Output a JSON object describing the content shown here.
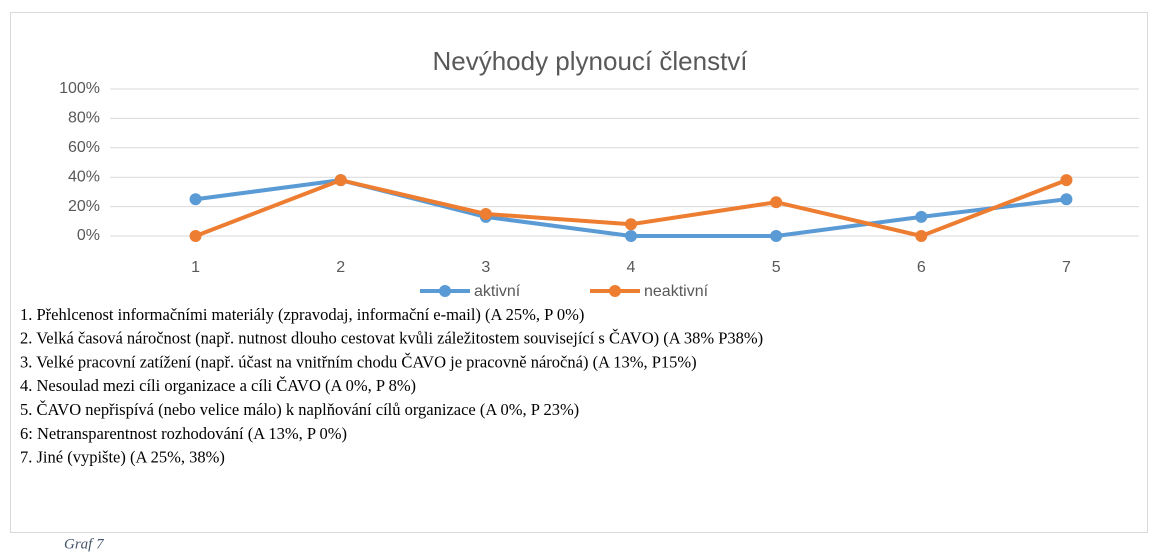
{
  "chart_data": {
    "type": "line",
    "title": "Nevýhody plynoucí členství",
    "categories": [
      "1",
      "2",
      "3",
      "4",
      "5",
      "6",
      "7"
    ],
    "series": [
      {
        "name": "aktivní",
        "color": "#5b9bd5",
        "values": [
          25,
          38,
          13,
          0,
          0,
          13,
          25
        ]
      },
      {
        "name": "neaktivní",
        "color": "#ed7d31",
        "values": [
          0,
          38,
          15,
          8,
          23,
          0,
          38
        ]
      }
    ],
    "ylim": [
      0,
      100
    ],
    "yticks": [
      {
        "value": 0,
        "label": "0%"
      },
      {
        "value": 20,
        "label": "20%"
      },
      {
        "value": 40,
        "label": "40%"
      },
      {
        "value": 60,
        "label": "60%"
      },
      {
        "value": 80,
        "label": "80%"
      },
      {
        "value": 100,
        "label": "100%"
      }
    ],
    "grid": true,
    "legend": "bottom"
  },
  "notes": [
    "1. Přehlcenost informačními materiály (zpravodaj, informační e-mail) (A 25%, P 0%)",
    "2. Velká časová náročnost (např. nutnost dlouho cestovat kvůli záležitostem související s ČAVO) (A 38% P38%)",
    "3. Velké pracovní zatížení (např. účast na vnitřním chodu ČAVO je pracovně náročná) (A 13%, P15%)",
    "4. Nesoulad mezi cíli organizace a cíli ČAVO (A 0%, P 8%)",
    "5. ČAVO nepřispívá (nebo velice málo) k naplňování cílů organizace (A 0%, P 23%)",
    "6: Netransparentnost rozhodování (A 13%, P 0%)",
    "7. Jiné (vypište) (A 25%, 38%)"
  ],
  "caption": "Graf 7"
}
